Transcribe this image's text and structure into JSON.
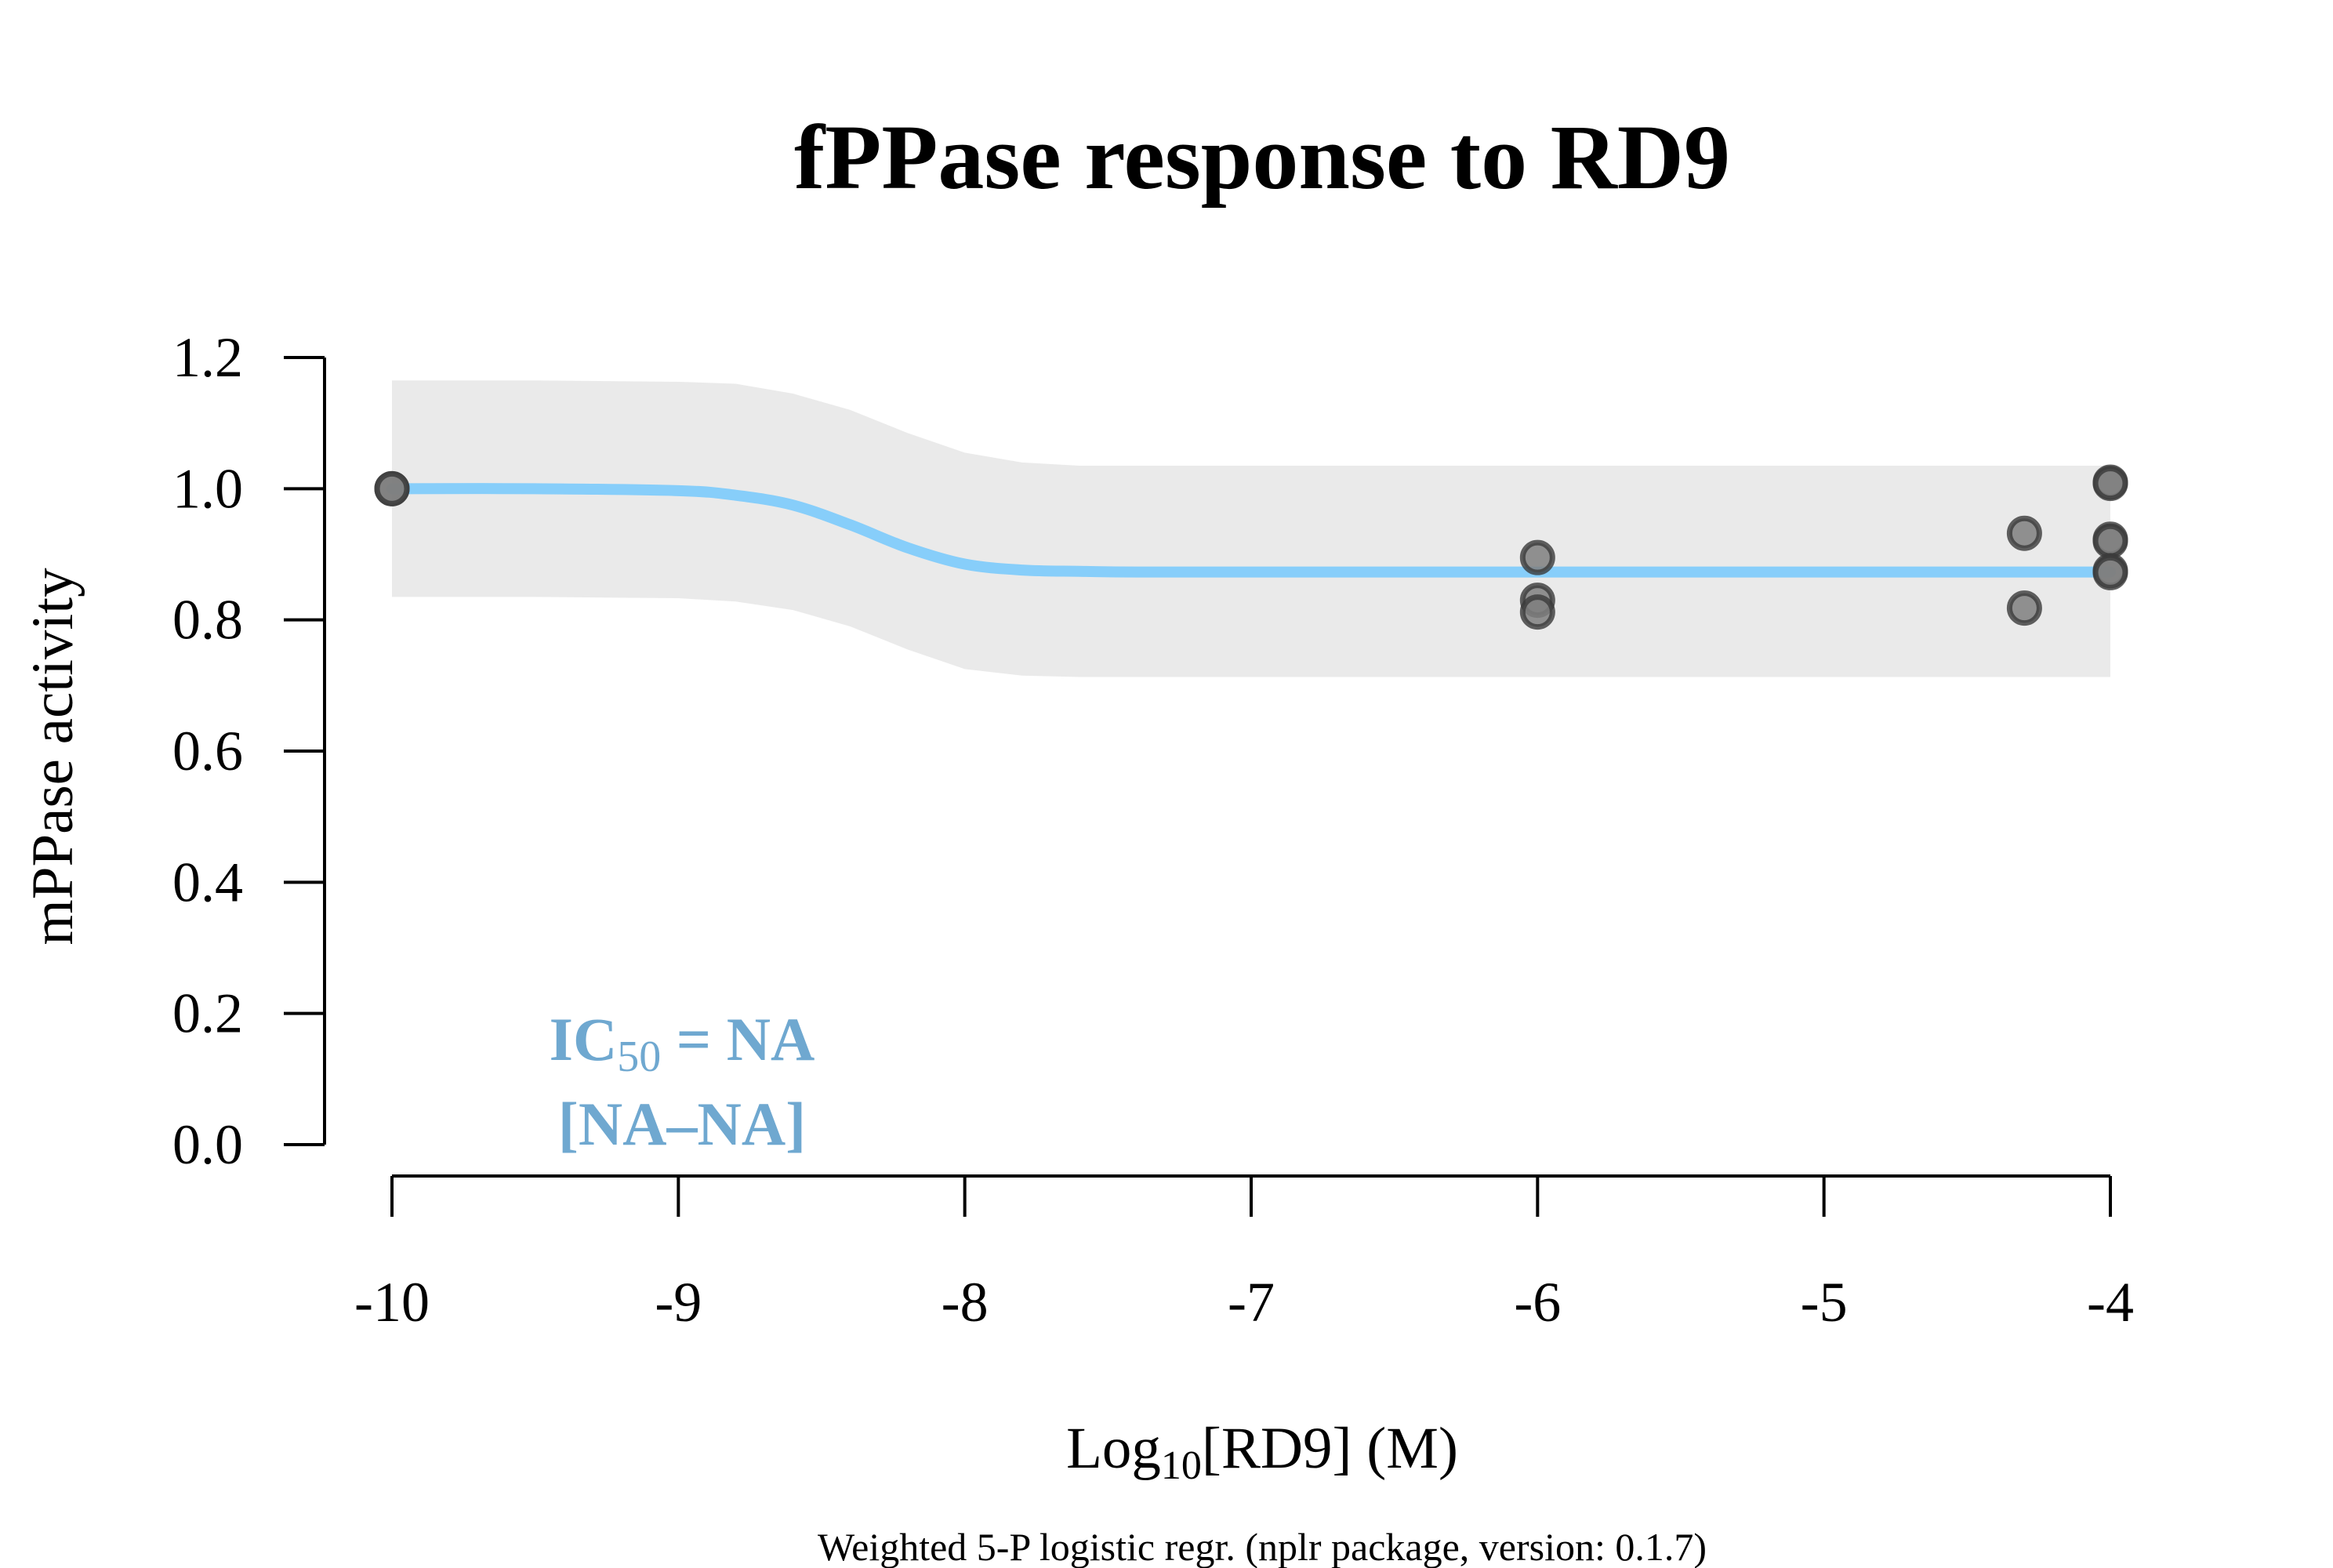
{
  "chart_data": {
    "type": "scatter",
    "title": "fPPase response to RD9",
    "ylabel": "mPPase activity",
    "xlabel": {
      "prefix": "Log",
      "subscript": "10",
      "suffix": "[RD9] (M)"
    },
    "footnote": "Weighted 5-P logistic regr. (nplr package, version: 0.1.7)",
    "annotation": {
      "line1_prefix": "IC",
      "line1_subscript": "50",
      "line1_suffix": " = NA",
      "line2": "[NA–NA]",
      "color": "#6FA8D0"
    },
    "xlim": [
      -10,
      -4
    ],
    "ylim": [
      0,
      1.2
    ],
    "x_ticks": [
      -10,
      -9,
      -8,
      -7,
      -6,
      -5,
      -4
    ],
    "x_tick_labels": [
      "-10",
      "-9",
      "-8",
      "-7",
      "-6",
      "-5",
      "-4"
    ],
    "y_ticks": [
      0.0,
      0.2,
      0.4,
      0.6,
      0.8,
      1.0,
      1.2
    ],
    "y_tick_labels": [
      "0.0",
      "0.2",
      "0.4",
      "0.6",
      "0.8",
      "1.0",
      "1.2"
    ],
    "points": {
      "x": [
        -10,
        -10,
        -6,
        -6,
        -6,
        -4.3,
        -4.3,
        -4,
        -4,
        -4,
        -4,
        -4,
        -4
      ],
      "y": [
        1.0,
        1.0,
        0.895,
        0.83,
        0.812,
        0.932,
        0.818,
        1.01,
        1.008,
        0.923,
        0.92,
        0.875,
        0.872
      ],
      "fill": "#7F7F7F",
      "stroke": "#3A3A3A"
    },
    "curve": {
      "x": [
        -10,
        -9.5,
        -9.0,
        -8.8,
        -8.6,
        -8.4,
        -8.2,
        -8.0,
        -7.8,
        -7.6,
        -7.4,
        -7.0,
        -6.0,
        -5.0,
        -4.0
      ],
      "y": [
        1.0,
        1.0,
        0.997,
        0.99,
        0.975,
        0.945,
        0.91,
        0.885,
        0.876,
        0.874,
        0.873,
        0.873,
        0.873,
        0.873,
        0.873
      ],
      "color": "#87CEFA"
    },
    "band": {
      "x": [
        -10,
        -9.5,
        -9.0,
        -8.8,
        -8.6,
        -8.4,
        -8.2,
        -8.0,
        -7.8,
        -7.6,
        -7.4,
        -7.0,
        -6.0,
        -5.0,
        -4.0
      ],
      "upper": [
        1.165,
        1.165,
        1.163,
        1.16,
        1.145,
        1.12,
        1.085,
        1.055,
        1.04,
        1.035,
        1.035,
        1.035,
        1.035,
        1.035,
        1.035
      ],
      "lower": [
        0.835,
        0.835,
        0.833,
        0.828,
        0.815,
        0.79,
        0.755,
        0.725,
        0.715,
        0.713,
        0.713,
        0.713,
        0.713,
        0.713,
        0.713
      ],
      "color": "#EAEAEA"
    },
    "grid": false,
    "legend": "none"
  }
}
